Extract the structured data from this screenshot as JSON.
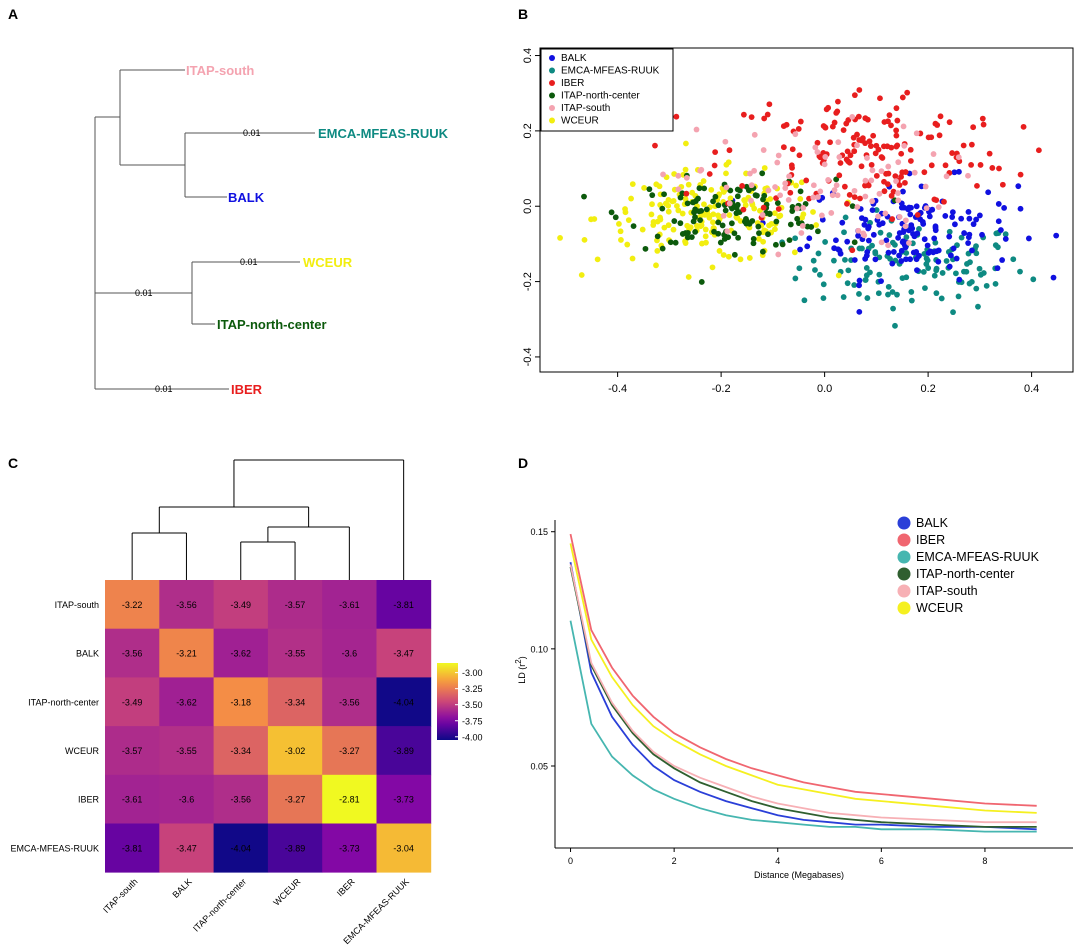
{
  "colors": {
    "BALK": "#1010e0",
    "EMCA-MFEAS-RUUK": "#0e8a82",
    "IBER": "#e81e1e",
    "ITAP-north-center": "#0c5a0c",
    "ITAP-south": "#f4a3b0",
    "WCEUR": "#f2ee10"
  },
  "chart_data": [
    {
      "panel": "A",
      "type": "tree",
      "leaves": [
        "ITAP-south",
        "EMCA-MFEAS-RUUK",
        "BALK",
        "WCEUR",
        "ITAP-north-center",
        "IBER"
      ],
      "branch_labels": [
        "0.01",
        "0.01",
        "0.01",
        "0.01"
      ]
    },
    {
      "panel": "B",
      "type": "scatter",
      "legend": [
        "BALK",
        "EMCA-MFEAS-RUUK",
        "IBER",
        "ITAP-north-center",
        "ITAP-south",
        "WCEUR"
      ],
      "xlim": [
        -0.55,
        0.48
      ],
      "ylim": [
        -0.44,
        0.42
      ],
      "xticks": [
        "-0.4",
        "-0.2",
        "0.0",
        "0.2",
        "0.4"
      ],
      "yticks": [
        "-0.4",
        "-0.2",
        "0.0",
        "0.2",
        "0.4"
      ],
      "clusters": [
        {
          "name": "BALK",
          "cx": 0.17,
          "cy": -0.06,
          "sx": 0.1,
          "sy": 0.065,
          "n": 150
        },
        {
          "name": "EMCA-MFEAS-RUUK",
          "cx": 0.17,
          "cy": -0.16,
          "sx": 0.11,
          "sy": 0.06,
          "n": 130
        },
        {
          "name": "IBER",
          "cx": 0.08,
          "cy": 0.14,
          "sx": 0.14,
          "sy": 0.09,
          "n": 170
        },
        {
          "name": "ITAP-north-center",
          "cx": -0.18,
          "cy": -0.02,
          "sx": 0.1,
          "sy": 0.045,
          "n": 120
        },
        {
          "name": "ITAP-south",
          "cx": -0.03,
          "cy": 0.05,
          "sx": 0.13,
          "sy": 0.08,
          "n": 90
        },
        {
          "name": "WCEUR",
          "cx": -0.22,
          "cy": -0.03,
          "sx": 0.11,
          "sy": 0.06,
          "n": 180
        }
      ]
    },
    {
      "panel": "C",
      "type": "heatmap",
      "rows": [
        "ITAP-south",
        "BALK",
        "ITAP-north-center",
        "WCEUR",
        "IBER",
        "EMCA-MFEAS-RUUK"
      ],
      "cols": [
        "ITAP-south",
        "BALK",
        "ITAP-north-center",
        "WCEUR",
        "IBER",
        "EMCA-MFEAS-RUUK"
      ],
      "cell_labels": [
        [
          "-3.22",
          "-3.56",
          "-3.49",
          "-3.57",
          "-3.61",
          "-3.81"
        ],
        [
          "-3.56",
          "-3.21",
          "-3.62",
          "-3.55",
          "-3.6",
          "-3.47"
        ],
        [
          "-3.49",
          "-3.62",
          "-3.18",
          "-3.34",
          "-3.56",
          "-4.04"
        ],
        [
          "-3.57",
          "-3.55",
          "-3.34",
          "-3.02",
          "-3.27",
          "-3.89"
        ],
        [
          "-3.61",
          "-3.6",
          "-3.56",
          "-3.27",
          "-2.81",
          "-3.73"
        ],
        [
          "-3.81",
          "-3.47",
          "-4.04",
          "-3.89",
          "-3.73",
          "-3.04"
        ]
      ],
      "colorbar_range": [
        -4.05,
        -2.85
      ],
      "colorbar_ticks": [
        "-3.00",
        "-3.25",
        "-3.50",
        "-3.75",
        "-4.00"
      ]
    },
    {
      "panel": "D",
      "type": "line",
      "xlabel": "Distance (Megabases)",
      "ylabel": "LD (r²)",
      "ylabel_base": "LD (r",
      "ylabel_sup": "2",
      "ylabel_tail": ")",
      "xlim": [
        -0.3,
        9.7
      ],
      "ylim": [
        0.015,
        0.155
      ],
      "xticks": [
        "0",
        "2",
        "4",
        "6",
        "8"
      ],
      "yticks": [
        "0.05",
        "0.10",
        "0.15"
      ],
      "x": [
        0,
        0.4,
        0.8,
        1.2,
        1.6,
        2.0,
        2.5,
        3.0,
        3.5,
        4.0,
        4.5,
        5.0,
        5.5,
        6.0,
        7.0,
        8.0,
        9.0
      ],
      "series": [
        {
          "name": "BALK",
          "color": "#2a3fd8",
          "values": [
            0.137,
            0.09,
            0.071,
            0.059,
            0.05,
            0.044,
            0.039,
            0.035,
            0.032,
            0.029,
            0.027,
            0.026,
            0.025,
            0.025,
            0.024,
            0.024,
            0.023
          ]
        },
        {
          "name": "IBER",
          "color": "#f06670",
          "values": [
            0.149,
            0.108,
            0.092,
            0.08,
            0.071,
            0.064,
            0.058,
            0.053,
            0.049,
            0.046,
            0.043,
            0.041,
            0.039,
            0.038,
            0.036,
            0.034,
            0.033
          ]
        },
        {
          "name": "EMCA-MFEAS-RUUK",
          "color": "#46b6b0",
          "values": [
            0.112,
            0.068,
            0.054,
            0.046,
            0.04,
            0.036,
            0.032,
            0.029,
            0.027,
            0.026,
            0.025,
            0.024,
            0.024,
            0.023,
            0.023,
            0.022,
            0.022
          ]
        },
        {
          "name": "ITAP-north-center",
          "color": "#2f5f2f",
          "values": [
            0.135,
            0.093,
            0.076,
            0.064,
            0.055,
            0.049,
            0.043,
            0.039,
            0.035,
            0.032,
            0.03,
            0.028,
            0.027,
            0.026,
            0.025,
            0.024,
            0.024
          ]
        },
        {
          "name": "ITAP-south",
          "color": "#f7b0b5",
          "values": [
            0.136,
            0.094,
            0.077,
            0.065,
            0.056,
            0.05,
            0.045,
            0.041,
            0.037,
            0.034,
            0.032,
            0.03,
            0.029,
            0.028,
            0.027,
            0.026,
            0.026
          ]
        },
        {
          "name": "WCEUR",
          "color": "#f5f020",
          "values": [
            0.145,
            0.104,
            0.088,
            0.076,
            0.067,
            0.061,
            0.055,
            0.05,
            0.046,
            0.042,
            0.04,
            0.038,
            0.036,
            0.035,
            0.033,
            0.031,
            0.03
          ]
        }
      ]
    }
  ],
  "panels": {
    "A": "A",
    "B": "B",
    "C": "C",
    "D": "D"
  }
}
